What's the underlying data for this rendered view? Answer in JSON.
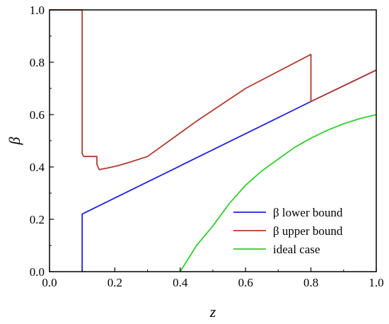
{
  "chart_data": {
    "type": "line",
    "xlabel": "z",
    "ylabel": "β",
    "xlim": [
      0.0,
      1.0
    ],
    "ylim": [
      0.0,
      1.0
    ],
    "x_ticks": [
      "0.0",
      "0.2",
      "0.4",
      "0.6",
      "0.8",
      "1.0"
    ],
    "y_ticks": [
      "0.0",
      "0.2",
      "0.4",
      "0.6",
      "0.8",
      "1.0"
    ],
    "grid": false,
    "legend_position": "bottom-right",
    "series": [
      {
        "name": "β lower bound",
        "color": "#1f1fe0",
        "points": [
          [
            0.1,
            0.0
          ],
          [
            0.1,
            0.22
          ],
          [
            0.8,
            0.65
          ],
          [
            1.0,
            0.77
          ]
        ]
      },
      {
        "name": "β upper bound",
        "color": "#b03a2e",
        "points": [
          [
            0.0,
            1.0
          ],
          [
            0.1,
            1.0
          ],
          [
            0.1,
            0.45
          ],
          [
            0.105,
            0.44
          ],
          [
            0.145,
            0.44
          ],
          [
            0.145,
            0.41
          ],
          [
            0.152,
            0.39
          ],
          [
            0.175,
            0.395
          ],
          [
            0.21,
            0.405
          ],
          [
            0.25,
            0.42
          ],
          [
            0.3,
            0.44
          ],
          [
            0.45,
            0.575
          ],
          [
            0.6,
            0.7
          ],
          [
            0.8,
            0.83
          ],
          [
            0.8,
            0.65
          ],
          [
            1.0,
            0.77
          ]
        ]
      },
      {
        "name": "ideal case",
        "color": "#33cc33",
        "points": [
          [
            0.4,
            0.0
          ],
          [
            0.45,
            0.1
          ],
          [
            0.5,
            0.175
          ],
          [
            0.55,
            0.26
          ],
          [
            0.6,
            0.33
          ],
          [
            0.65,
            0.385
          ],
          [
            0.7,
            0.43
          ],
          [
            0.75,
            0.475
          ],
          [
            0.8,
            0.51
          ],
          [
            0.85,
            0.54
          ],
          [
            0.9,
            0.565
          ],
          [
            0.95,
            0.585
          ],
          [
            1.0,
            0.6
          ]
        ]
      }
    ]
  }
}
